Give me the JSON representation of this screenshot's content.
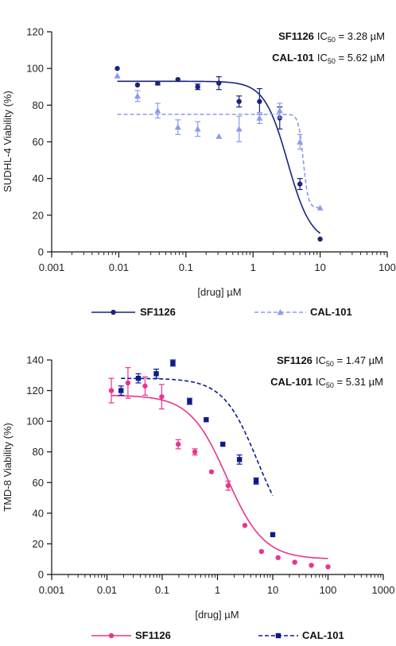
{
  "colors": {
    "sf1126_top": "#1a237e",
    "cal101_top": "#8c9aec",
    "sf1126_bottom": "#e8348e",
    "cal101_bottom": "#0d1a8c",
    "axis": "#111111"
  },
  "chart_data": [
    {
      "type": "scatter",
      "xscale": "log",
      "xlim": [
        0.001,
        100
      ],
      "ylim": [
        0,
        120
      ],
      "xticks": [
        0.001,
        0.01,
        0.1,
        1,
        10,
        100
      ],
      "xticklabels": [
        "0.001",
        "0.01",
        "0.1",
        "1",
        "10",
        "100"
      ],
      "yticks": [
        0,
        20,
        40,
        60,
        80,
        100,
        120
      ],
      "yticklabels": [
        "0",
        "20",
        "40",
        "60",
        "80",
        "100",
        "120"
      ],
      "xlabel": "[drug] µM",
      "ylabel": "SUDHL-4 Viability (%)",
      "legend_position": "bottom",
      "annotations": [
        {
          "drug": "SF1126",
          "ic_prefix": "IC",
          "ic_sub": "50",
          "value_text": " = 3.28 µM"
        },
        {
          "drug": "CAL-101",
          "ic_prefix": "IC",
          "ic_sub": "50",
          "value_text": " = 5.62 µM"
        }
      ],
      "series": [
        {
          "name": "SF1126",
          "marker": "circle",
          "line_style": "solid",
          "fit": {
            "top": 93,
            "bottom": 5,
            "ic50": 3.28,
            "hill": 2.5
          },
          "points": [
            {
              "x": 0.0095,
              "y": 100,
              "err": 0
            },
            {
              "x": 0.019,
              "y": 91,
              "err": 0
            },
            {
              "x": 0.038,
              "y": 92,
              "err": 1
            },
            {
              "x": 0.076,
              "y": 94,
              "err": 0
            },
            {
              "x": 0.15,
              "y": 90,
              "err": 1.5
            },
            {
              "x": 0.31,
              "y": 92,
              "err": 3.5
            },
            {
              "x": 0.62,
              "y": 82,
              "err": 3
            },
            {
              "x": 1.25,
              "y": 82,
              "err": 7
            },
            {
              "x": 2.5,
              "y": 73,
              "err": 6
            },
            {
              "x": 5,
              "y": 37,
              "err": 3
            },
            {
              "x": 10,
              "y": 7,
              "err": 0
            }
          ]
        },
        {
          "name": "CAL-101",
          "marker": "triangle",
          "line_style": "dashed",
          "fit": {
            "top": 75,
            "bottom": 24,
            "ic50": 5.62,
            "hill": 12
          },
          "points": [
            {
              "x": 0.0095,
              "y": 96,
              "err": 0
            },
            {
              "x": 0.019,
              "y": 85,
              "err": 3
            },
            {
              "x": 0.038,
              "y": 77,
              "err": 4
            },
            {
              "x": 0.076,
              "y": 68,
              "err": 4
            },
            {
              "x": 0.15,
              "y": 67,
              "err": 4
            },
            {
              "x": 0.31,
              "y": 63,
              "err": 0
            },
            {
              "x": 0.62,
              "y": 67,
              "err": 7
            },
            {
              "x": 1.25,
              "y": 73,
              "err": 3
            },
            {
              "x": 2.5,
              "y": 77,
              "err": 4
            },
            {
              "x": 5,
              "y": 60,
              "err": 4
            },
            {
              "x": 10,
              "y": 24,
              "err": 0
            }
          ]
        }
      ]
    },
    {
      "type": "scatter",
      "xscale": "log",
      "xlim": [
        0.001,
        1000
      ],
      "ylim": [
        0,
        140
      ],
      "xticks": [
        0.001,
        0.01,
        0.1,
        1,
        10,
        100,
        1000
      ],
      "xticklabels": [
        "0.001",
        "0.01",
        "0.1",
        "1",
        "10",
        "100",
        "1000"
      ],
      "yticks": [
        0,
        20,
        40,
        60,
        80,
        100,
        120,
        140
      ],
      "yticklabels": [
        "0",
        "20",
        "40",
        "60",
        "80",
        "100",
        "120",
        "140"
      ],
      "xlabel": "[drug] µM",
      "ylabel": "TMD-8 Viability (%)",
      "legend_position": "bottom",
      "annotations": [
        {
          "drug": "SF1126",
          "ic_prefix": "IC",
          "ic_sub": "50",
          "value_text": " = 1.47 µM"
        },
        {
          "drug": "CAL-101",
          "ic_prefix": "IC",
          "ic_sub": "50",
          "value_text": " = 5.31 µM"
        }
      ],
      "series": [
        {
          "name": "SF1126",
          "marker": "circle",
          "line_style": "solid",
          "fit": {
            "top": 117,
            "bottom": 10,
            "ic50": 1.47,
            "hill": 1.3,
            "xmin": 0.012,
            "xmax": 100
          },
          "points": [
            {
              "x": 0.012,
              "y": 120,
              "err": 8
            },
            {
              "x": 0.024,
              "y": 125,
              "err": 10
            },
            {
              "x": 0.049,
              "y": 123,
              "err": 6
            },
            {
              "x": 0.098,
              "y": 116,
              "err": 8
            },
            {
              "x": 0.195,
              "y": 85,
              "err": 3
            },
            {
              "x": 0.39,
              "y": 80,
              "err": 2
            },
            {
              "x": 0.78,
              "y": 67,
              "err": 0
            },
            {
              "x": 1.56,
              "y": 58,
              "err": 3
            },
            {
              "x": 3.13,
              "y": 32,
              "err": 0
            },
            {
              "x": 6.25,
              "y": 15,
              "err": 0
            },
            {
              "x": 12.5,
              "y": 11,
              "err": 0
            },
            {
              "x": 25,
              "y": 8,
              "err": 0
            },
            {
              "x": 50,
              "y": 6,
              "err": 0
            },
            {
              "x": 100,
              "y": 5,
              "err": 0
            }
          ]
        },
        {
          "name": "CAL-101",
          "marker": "square",
          "line_style": "dashed",
          "fit": {
            "top": 128,
            "bottom": 20,
            "ic50": 5.31,
            "hill": 1.4,
            "xmin": 0.018,
            "xmax": 10
          },
          "points": [
            {
              "x": 0.018,
              "y": 120,
              "err": 3
            },
            {
              "x": 0.037,
              "y": 128,
              "err": 3
            },
            {
              "x": 0.078,
              "y": 131,
              "err": 3
            },
            {
              "x": 0.156,
              "y": 138,
              "err": 2
            },
            {
              "x": 0.313,
              "y": 113,
              "err": 2
            },
            {
              "x": 0.625,
              "y": 101,
              "err": 0
            },
            {
              "x": 1.25,
              "y": 85,
              "err": 0
            },
            {
              "x": 2.5,
              "y": 75,
              "err": 3
            },
            {
              "x": 5,
              "y": 61,
              "err": 2
            },
            {
              "x": 10,
              "y": 26,
              "err": 0
            }
          ]
        }
      ]
    }
  ]
}
